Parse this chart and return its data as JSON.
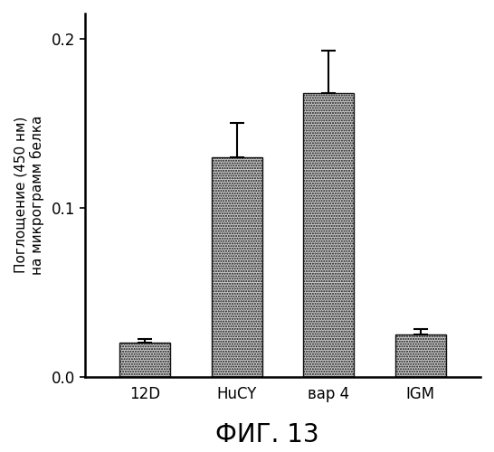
{
  "categories": [
    "12D",
    "HuCY",
    "вар 4",
    "IGM"
  ],
  "values": [
    0.02,
    0.13,
    0.168,
    0.025
  ],
  "errors": [
    0.002,
    0.02,
    0.025,
    0.003
  ],
  "bar_color": "#c8c8c8",
  "bar_edgecolor": "#111111",
  "ylim": [
    0,
    0.215
  ],
  "yticks": [
    0.0,
    0.1,
    0.2
  ],
  "ytick_labels": [
    "0.0",
    "0.1",
    "0.2"
  ],
  "ylabel_line1": "Поглощение (450 нм)",
  "ylabel_line2": "на микрограмм белка",
  "title": "ФИГ. 13",
  "title_fontsize": 20,
  "ylabel_fontsize": 11,
  "xtick_fontsize": 12,
  "ytick_fontsize": 12,
  "background_color": "#ffffff",
  "bar_width": 0.55
}
